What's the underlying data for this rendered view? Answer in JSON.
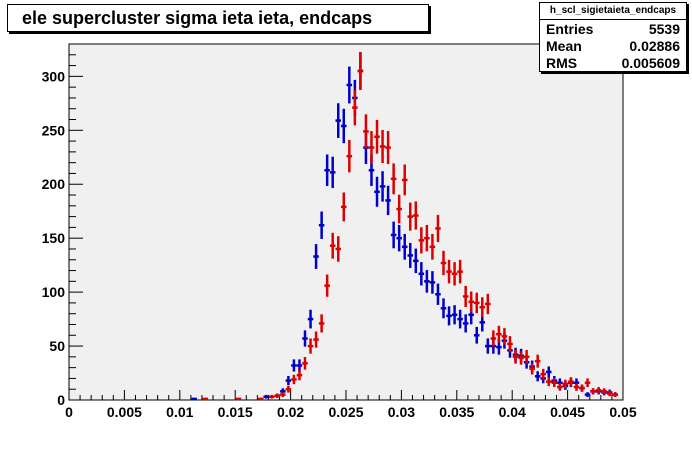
{
  "chart_data": {
    "type": "scatter",
    "title": "ele supercluster sigma ieta ieta, endcaps",
    "xlim": [
      0,
      0.05
    ],
    "ylim": [
      0,
      330
    ],
    "x_ticks": [
      "0",
      "0.005",
      "0.01",
      "0.015",
      "0.02",
      "0.025",
      "0.03",
      "0.035",
      "0.04",
      "0.045",
      "0.05"
    ],
    "y_ticks": [
      "0",
      "50",
      "100",
      "150",
      "200",
      "250",
      "300"
    ],
    "x_tick_values": [
      0,
      0.005,
      0.01,
      0.015,
      0.02,
      0.025,
      0.03,
      0.035,
      0.04,
      0.045,
      0.05
    ],
    "y_tick_values": [
      0,
      50,
      100,
      150,
      200,
      250,
      300
    ],
    "grid": false,
    "stats": {
      "name": "h_scl_sigietaieta_endcaps",
      "entries_label": "Entries",
      "entries": "5539",
      "mean_label": "Mean",
      "mean": "0.02886",
      "rms_label": "RMS",
      "rms": "0.005609"
    },
    "series": [
      {
        "color": "#0000cc",
        "x": [
          0.0113,
          0.0178,
          0.0188,
          0.0193,
          0.0198,
          0.0203,
          0.0208,
          0.0213,
          0.0218,
          0.0223,
          0.0228,
          0.0233,
          0.0238,
          0.0243,
          0.0248,
          0.0253,
          0.0258,
          0.0263,
          0.0268,
          0.0273,
          0.0278,
          0.0283,
          0.0288,
          0.0293,
          0.0298,
          0.0303,
          0.0308,
          0.0313,
          0.0318,
          0.0323,
          0.0328,
          0.0333,
          0.0338,
          0.0343,
          0.0348,
          0.0353,
          0.0358,
          0.0363,
          0.0368,
          0.0373,
          0.0378,
          0.0383,
          0.0388,
          0.0393,
          0.0398,
          0.0403,
          0.0408,
          0.0413,
          0.0418,
          0.0423,
          0.0428,
          0.0433,
          0.0438,
          0.0443,
          0.0448,
          0.0453,
          0.0458,
          0.0463,
          0.0468,
          0.0473,
          0.0478,
          0.0483,
          0.0488,
          0.0493
        ],
        "y": [
          1,
          3,
          4,
          8,
          18,
          32,
          32,
          57,
          75,
          133,
          162,
          213,
          211,
          259,
          254,
          292,
          280,
          305,
          234,
          213,
          193,
          198,
          185,
          153,
          150,
          142,
          134,
          129,
          117,
          110,
          109,
          98,
          85,
          78,
          79,
          75,
          71,
          79,
          60,
          72,
          50,
          50,
          49,
          55,
          46,
          42,
          41,
          35,
          31,
          22,
          20,
          26,
          18,
          16,
          13,
          16,
          16,
          11,
          5,
          8,
          8,
          7,
          7,
          5
        ]
      },
      {
        "color": "#dd0000",
        "x": [
          0.0123,
          0.0153,
          0.0173,
          0.0183,
          0.0188,
          0.0193,
          0.0198,
          0.0203,
          0.0208,
          0.0213,
          0.0218,
          0.0223,
          0.0228,
          0.0233,
          0.0238,
          0.0243,
          0.0248,
          0.0253,
          0.0258,
          0.0263,
          0.0268,
          0.0273,
          0.0278,
          0.0283,
          0.0288,
          0.0293,
          0.0298,
          0.0303,
          0.0308,
          0.0313,
          0.0318,
          0.0323,
          0.0328,
          0.0333,
          0.0338,
          0.0343,
          0.0348,
          0.0353,
          0.0358,
          0.0363,
          0.0368,
          0.0373,
          0.0378,
          0.0383,
          0.0388,
          0.0393,
          0.0398,
          0.0403,
          0.0408,
          0.0413,
          0.0418,
          0.0423,
          0.0428,
          0.0433,
          0.0438,
          0.0443,
          0.0448,
          0.0453,
          0.0458,
          0.0463,
          0.0468,
          0.0473,
          0.0478,
          0.0483,
          0.0488,
          0.0493
        ],
        "y": [
          1,
          1,
          1,
          3,
          4,
          5,
          10,
          19,
          23,
          34,
          50,
          56,
          71,
          106,
          143,
          140,
          179,
          226,
          271,
          305,
          249,
          234,
          244,
          235,
          234,
          205,
          177,
          204,
          170,
          171,
          148,
          150,
          142,
          159,
          127,
          119,
          117,
          119,
          96,
          91,
          90,
          86,
          89,
          57,
          61,
          59,
          52,
          40,
          39,
          40,
          29,
          36,
          24,
          17,
          16,
          12,
          15,
          17,
          12,
          11,
          16,
          8,
          9,
          8,
          6,
          5
        ]
      }
    ]
  }
}
